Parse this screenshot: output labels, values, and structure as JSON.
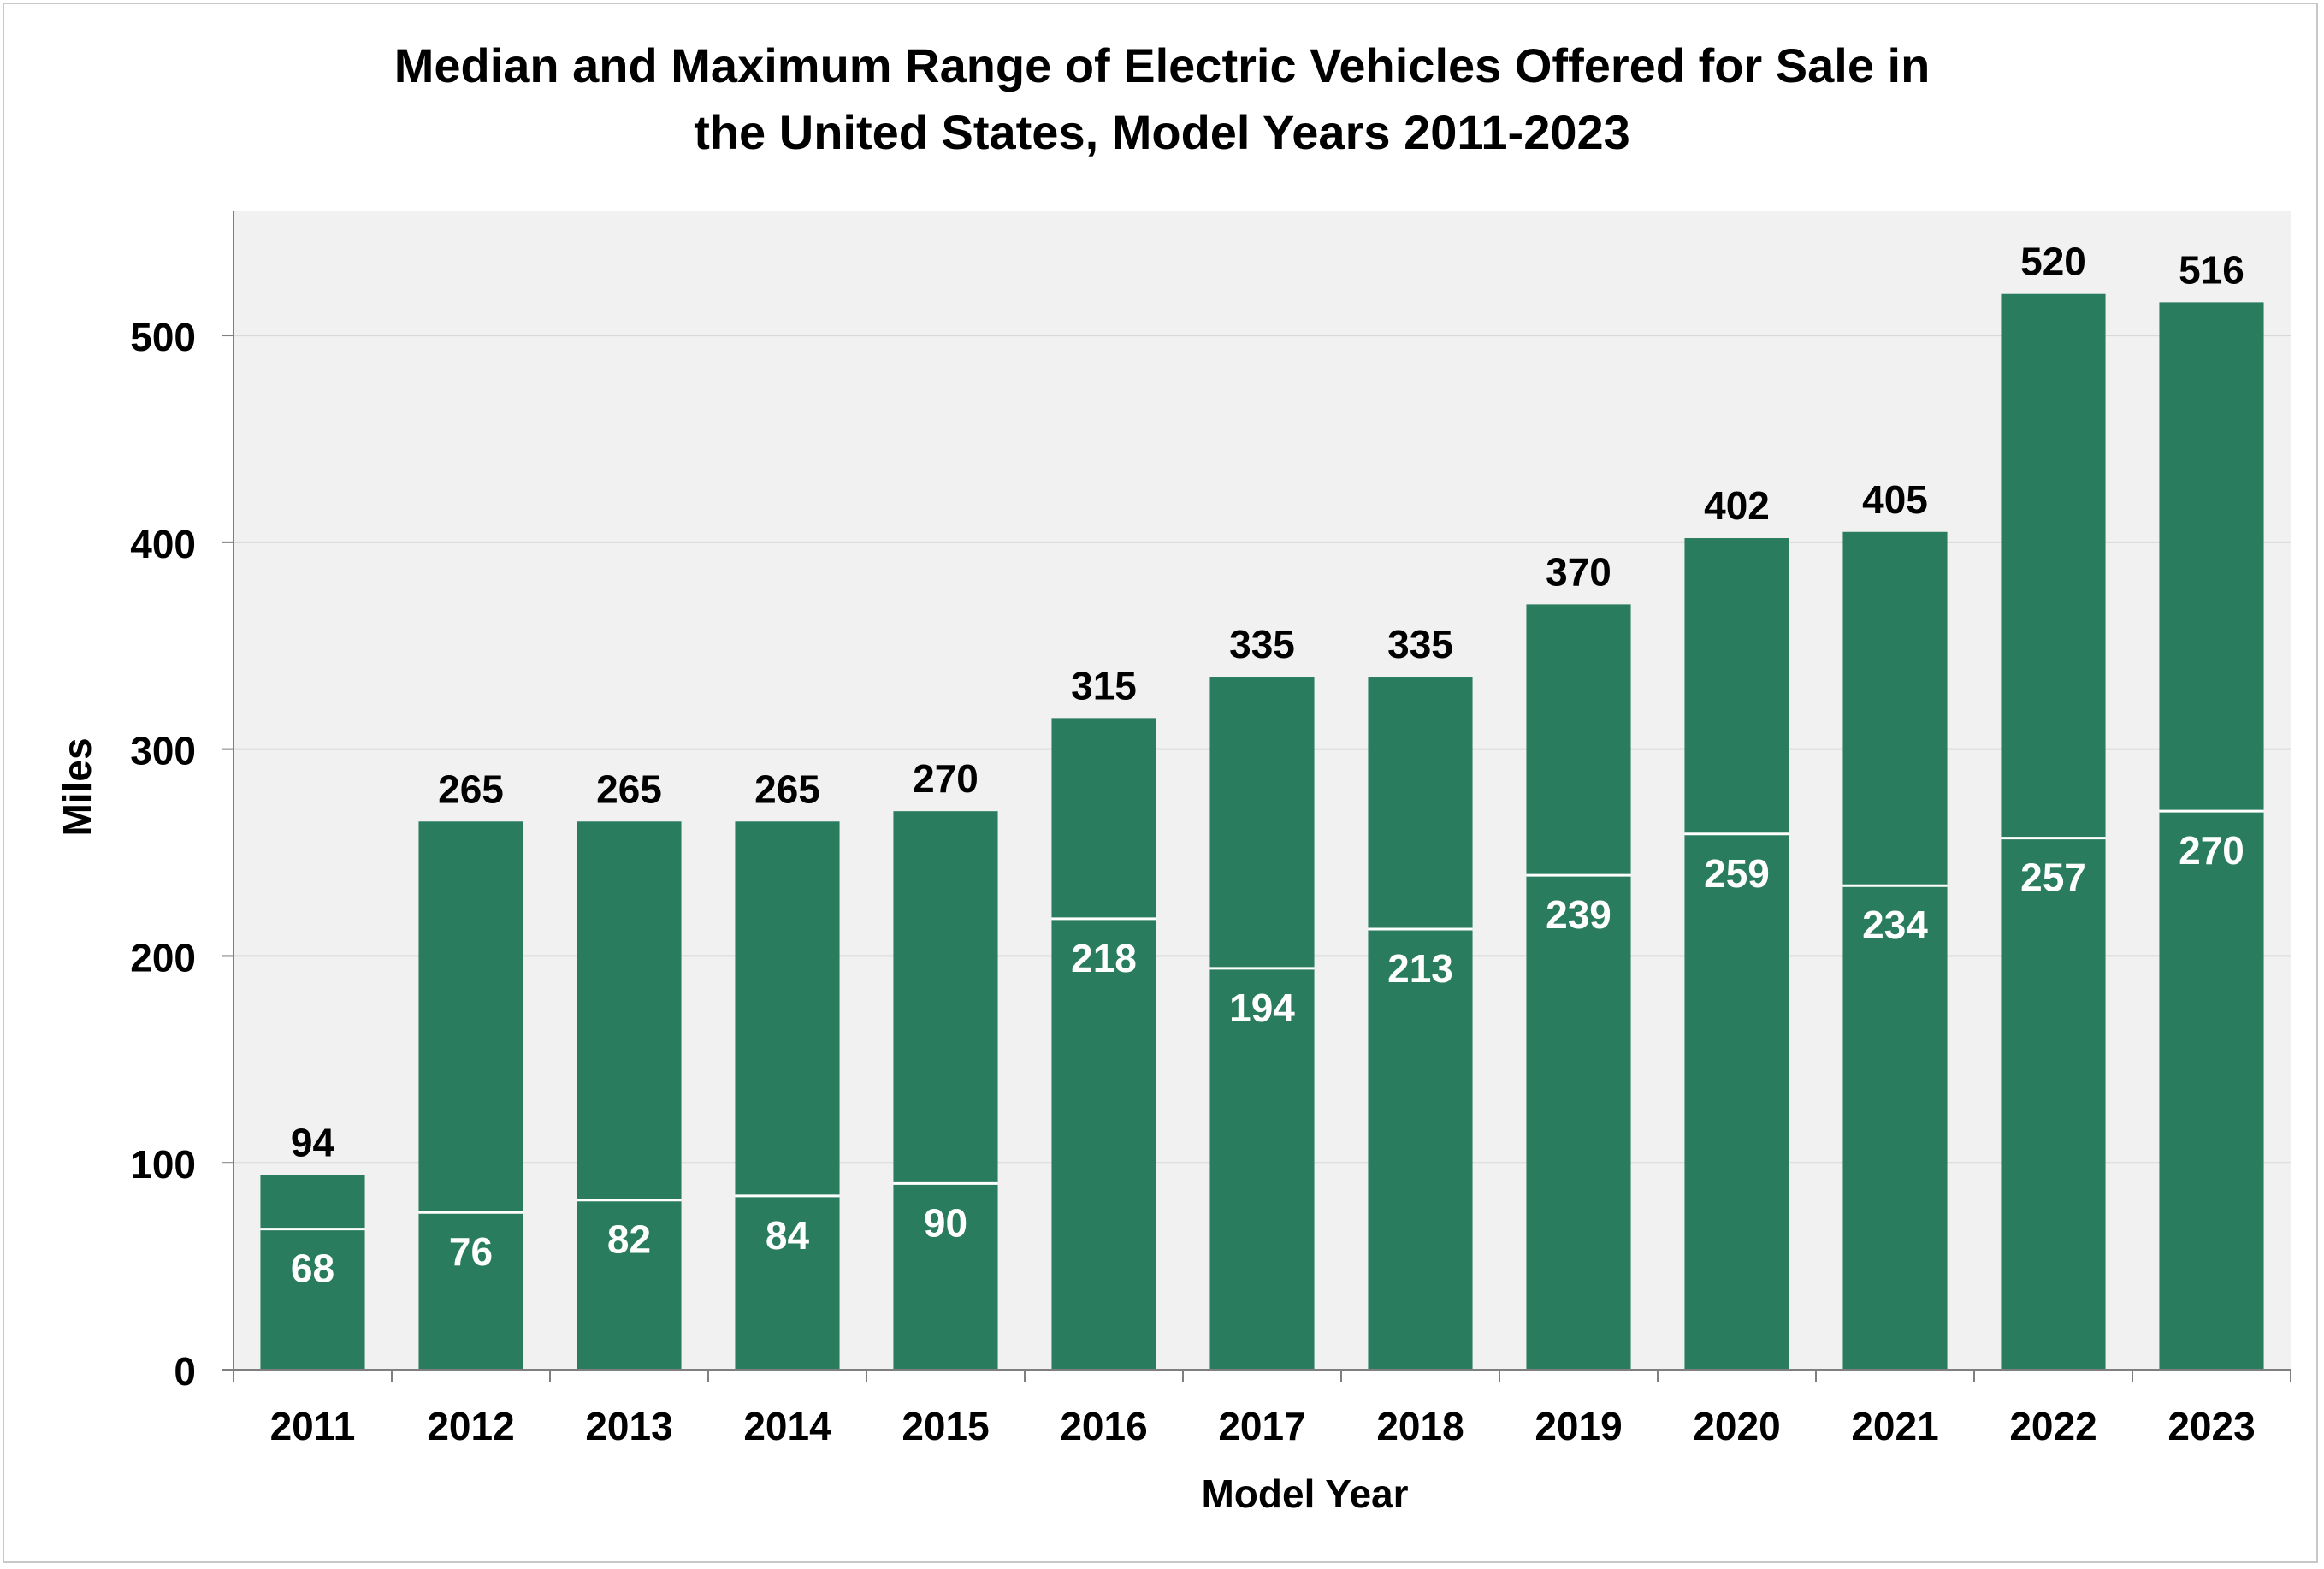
{
  "chart_data": {
    "type": "bar",
    "title_lines": [
      "Median and Maximum Range of Electric Vehicles Offered for Sale in",
      "the United States, Model Years 2011-2023"
    ],
    "xlabel": "Model Year",
    "ylabel": "Miles",
    "ylim": [
      0,
      560
    ],
    "yticks": [
      0,
      100,
      200,
      300,
      400,
      500
    ],
    "grid": true,
    "categories": [
      "2011",
      "2012",
      "2013",
      "2014",
      "2015",
      "2016",
      "2017",
      "2018",
      "2019",
      "2020",
      "2021",
      "2022",
      "2023"
    ],
    "series": [
      {
        "values": [
          94,
          265,
          265,
          265,
          270,
          315,
          335,
          335,
          370,
          402,
          405,
          520,
          516
        ]
      },
      {
        "values": [
          68,
          76,
          82,
          84,
          90,
          218,
          194,
          213,
          239,
          259,
          234,
          257,
          270
        ]
      }
    ],
    "colors": {
      "bar": "#2a7c5f",
      "plot_bg": "#f1f1f1",
      "grid": "#d9d9d9",
      "divider": "#ffffff"
    }
  }
}
